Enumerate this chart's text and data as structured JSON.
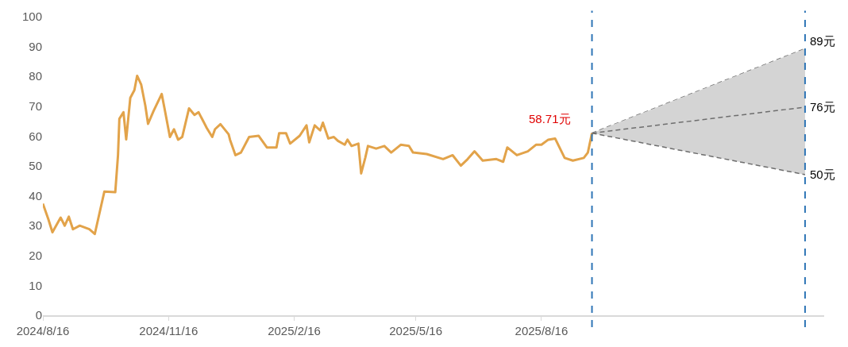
{
  "chart_data": {
    "type": "line",
    "series": [
      {
        "color": "#e2a34a",
        "x": [
          "2024-08-16",
          "2024-08-20",
          "2024-08-23",
          "2024-08-29",
          "2024-09-01",
          "2024-09-04",
          "2024-09-07",
          "2024-09-12",
          "2024-09-19",
          "2024-09-23",
          "2024-09-30",
          "2024-10-08",
          "2024-10-10",
          "2024-10-11",
          "2024-10-14",
          "2024-10-16",
          "2024-10-19",
          "2024-10-22",
          "2024-10-24",
          "2024-10-27",
          "2024-10-30",
          "2024-11-01",
          "2024-11-05",
          "2024-11-11",
          "2024-11-13",
          "2024-11-17",
          "2024-11-20",
          "2024-11-23",
          "2024-11-26",
          "2024-12-01",
          "2024-12-05",
          "2024-12-08",
          "2024-12-14",
          "2024-12-18",
          "2024-12-20",
          "2024-12-24",
          "2024-12-30",
          "2024-12-31",
          "2025-01-04",
          "2025-01-08",
          "2025-01-14",
          "2025-01-21",
          "2025-01-27",
          "2025-02-03",
          "2025-02-05",
          "2025-02-10",
          "2025-02-13",
          "2025-02-20",
          "2025-02-25",
          "2025-02-27",
          "2025-03-03",
          "2025-03-07",
          "2025-03-09",
          "2025-03-13",
          "2025-03-17",
          "2025-03-20",
          "2025-03-25",
          "2025-03-27",
          "2025-03-30",
          "2025-04-04",
          "2025-04-06",
          "2025-04-09",
          "2025-04-11",
          "2025-04-17",
          "2025-04-23",
          "2025-04-28",
          "2025-05-05",
          "2025-05-11",
          "2025-05-14",
          "2025-05-24",
          "2025-06-05",
          "2025-06-12",
          "2025-06-18",
          "2025-06-23",
          "2025-06-28",
          "2025-07-04",
          "2025-07-14",
          "2025-07-19",
          "2025-07-22",
          "2025-07-29",
          "2025-08-06",
          "2025-08-12",
          "2025-08-16",
          "2025-08-21",
          "2025-08-26",
          "2025-09-02",
          "2025-09-08",
          "2025-09-16",
          "2025-09-19",
          "2025-09-22"
        ],
        "values": [
          37.4,
          32.2,
          27.8,
          32.7,
          30,
          33,
          28.8,
          30,
          28.8,
          27.2,
          41.4,
          41.2,
          53.6,
          65.8,
          68,
          58.9,
          72.8,
          75.4,
          80.2,
          77.2,
          70.2,
          64.1,
          68.4,
          74.1,
          69.4,
          59.7,
          62.3,
          58.8,
          59.7,
          69.3,
          67.1,
          68,
          62.7,
          59.7,
          62.3,
          64,
          60.6,
          58.8,
          53.6,
          54.5,
          59.7,
          60.1,
          56.2,
          56.2,
          61,
          61,
          57.5,
          60.1,
          63.6,
          57.9,
          63.6,
          61.9,
          64.5,
          59.2,
          59.7,
          58.4,
          57.1,
          58.8,
          56.7,
          57.5,
          47.5,
          52.7,
          56.7,
          55.8,
          56.7,
          54.5,
          57.1,
          56.7,
          54.5,
          54,
          52.3,
          53.6,
          50.1,
          52.3,
          54.9,
          51.8,
          52.3,
          51.4,
          56.2,
          53.6,
          54.9,
          57.1,
          57.1,
          58.8,
          59.2,
          52.7,
          51.8,
          52.7,
          54.5,
          61
        ]
      },
      {
        "color": "#6e6e6e",
        "line_style": "dashed",
        "x": [
          "2025-09-22",
          "2026-02-25"
        ],
        "values": [
          61,
          89.3
        ]
      },
      {
        "color": "#6e6e6e",
        "line_style": "dashed",
        "x": [
          "2025-09-22",
          "2026-02-25"
        ],
        "values": [
          61,
          69.7
        ],
        "lower": [
          61,
          47.1
        ],
        "upper": [
          61,
          89.3
        ]
      },
      {
        "color": "#6e6e6e",
        "line_style": "dashed",
        "x": [
          "2025-09-22",
          "2026-02-25"
        ],
        "values": [
          61,
          47.1
        ]
      }
    ],
    "xlim": [
      "2024-08-16",
      "2026-03-11"
    ],
    "xticks": [
      {
        "value": "2024-08-16",
        "label": "2024/8/16"
      },
      {
        "value": "2024-11-16",
        "label": "2024/11/16"
      },
      {
        "value": "2025-02-16",
        "label": "2025/2/16"
      },
      {
        "value": "2025-05-16",
        "label": "2025/5/16"
      },
      {
        "value": "2025-08-16",
        "label": "2025/8/16"
      }
    ],
    "ylim": [
      0,
      100
    ],
    "yticks": [
      0,
      10,
      20,
      30,
      40,
      50,
      60,
      70,
      80,
      90,
      100
    ],
    "ref_lines": [
      {
        "axis": "x",
        "value": "2025-09-22",
        "color": "#2e75b6",
        "line_style": "dashed"
      },
      {
        "axis": "x",
        "value": "2026-02-25",
        "color": "#2e75b6",
        "line_style": "dashed"
      }
    ],
    "annotations": [
      {
        "text": "58.71元",
        "x": "2025-09-22",
        "y": 61
      },
      {
        "text": "89元",
        "x": "2026-02-25",
        "y": 89.3
      },
      {
        "text": "76元",
        "x": "2026-02-25",
        "y": 69.7
      },
      {
        "text": "50元",
        "x": "2026-02-25",
        "y": 47.1
      }
    ],
    "tick_labels": [
      "x",
      "y"
    ]
  }
}
